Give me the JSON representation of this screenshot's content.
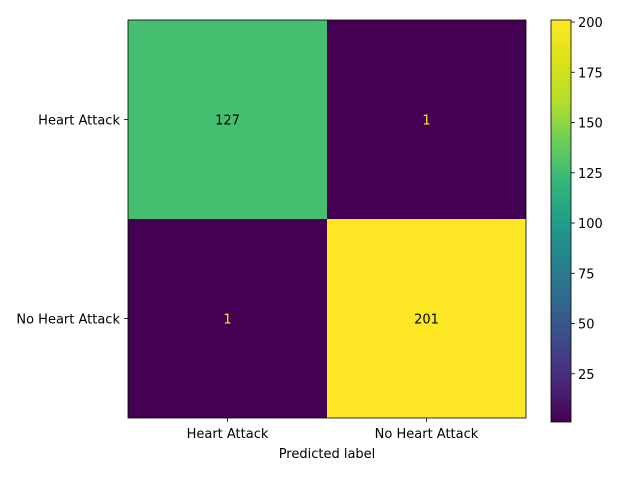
{
  "chart_data": {
    "type": "heatmap",
    "title": "",
    "xlabel": "Predicted label",
    "ylabel": "",
    "x_categories": [
      "Heart Attack",
      "No Heart Attack"
    ],
    "y_categories": [
      "Heart Attack",
      "No Heart Attack"
    ],
    "matrix": [
      [
        127,
        1
      ],
      [
        1,
        201
      ]
    ],
    "colormap": "viridis",
    "colorbar": {
      "min": 1,
      "max": 201,
      "ticks": [
        25,
        50,
        75,
        100,
        125,
        150,
        175,
        200
      ]
    },
    "text_colors": {
      "on_dark": "#fde725",
      "on_light": "#000000"
    },
    "grid": false
  }
}
